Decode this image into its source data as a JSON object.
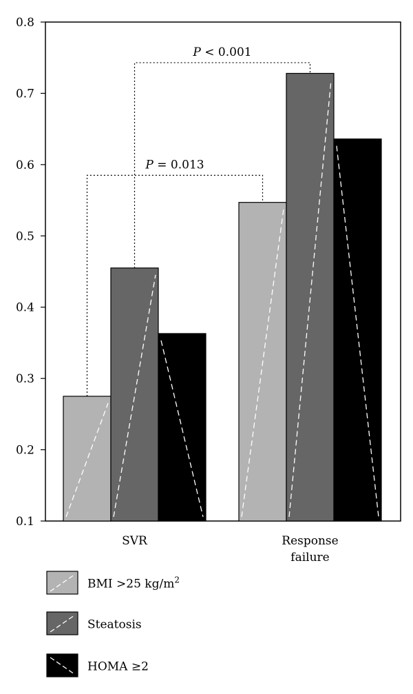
{
  "chart_data": {
    "type": "bar",
    "title": "",
    "xlabel": "",
    "ylabel": "",
    "ylim": [
      0.1,
      0.8
    ],
    "yticks": [
      "0.1",
      "0.2",
      "0.3",
      "0.4",
      "0.5",
      "0.6",
      "0.7",
      "0.8"
    ],
    "categories": [
      {
        "lines": [
          "SVR"
        ]
      },
      {
        "lines": [
          "Response",
          "failure"
        ]
      }
    ],
    "series": [
      {
        "name": "BMI >25 kg/m²",
        "legend_text": "BMI >25 kg/m",
        "legend_sup": "2",
        "color": "#b3b3b3",
        "values": [
          0.275,
          0.547
        ]
      },
      {
        "name": "Steatosis",
        "legend_text": "Steatosis",
        "legend_sup": "",
        "color": "#666666",
        "values": [
          0.455,
          0.728
        ]
      },
      {
        "name": "HOMA ≥2",
        "legend_text": "HOMA ≥2",
        "legend_sup": "",
        "color": "#000000",
        "values": [
          0.363,
          0.636
        ]
      }
    ],
    "annotations": [
      {
        "italic": "P",
        "rest": " = 0.013",
        "from": {
          "category": 0,
          "series": 0
        },
        "to": {
          "category": 1,
          "series": 0
        },
        "level": 0.585
      },
      {
        "italic": "P",
        "rest": " < 0.001",
        "from": {
          "category": 0,
          "series": 1
        },
        "to": {
          "category": 1,
          "series": 1
        },
        "level": 0.743
      }
    ],
    "grid": false,
    "legend_position": "bottom-left"
  }
}
